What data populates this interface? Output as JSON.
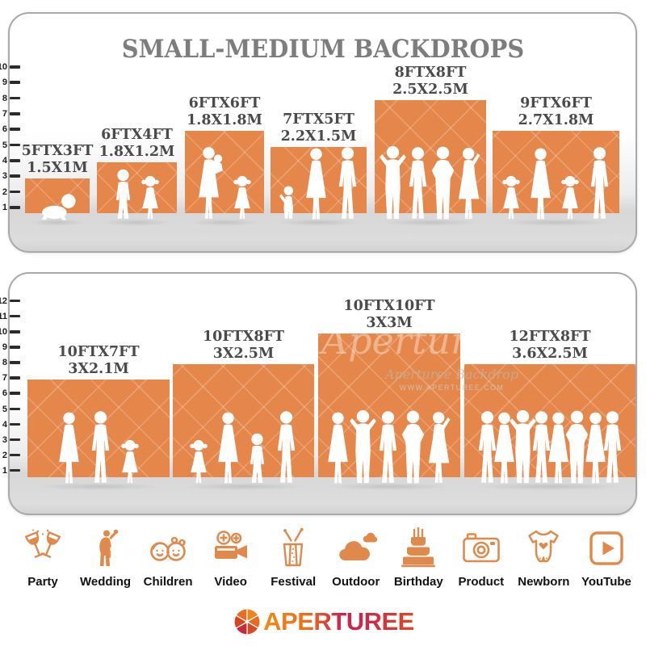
{
  "panel1": {
    "title": "SMALL-MEDIUM BACKDROPS",
    "ruler": [
      "10",
      "9",
      "8",
      "7",
      "6",
      "5",
      "4",
      "3",
      "2",
      "1"
    ],
    "backdrops": [
      {
        "size_ft": "5FTX3FT",
        "size_m": "1.5X1M",
        "figures": [
          "baby"
        ]
      },
      {
        "size_ft": "6FTX4FT",
        "size_m": "1.8X1.2M",
        "figures": [
          "boy",
          "girl"
        ]
      },
      {
        "size_ft": "6FTX6FT",
        "size_m": "1.8X1.8M",
        "figures": [
          "woman-carry",
          "girl"
        ]
      },
      {
        "size_ft": "7FTX5FT",
        "size_m": "2.2X1.5M",
        "figures": [
          "child",
          "woman",
          "man"
        ]
      },
      {
        "size_ft": "8FTX8FT",
        "size_m": "2.5X2.5M",
        "figures": [
          "man-armsup",
          "man",
          "man-akimbo",
          "woman-armsup"
        ]
      },
      {
        "size_ft": "9FTX6FT",
        "size_m": "2.7X1.8M",
        "figures": [
          "girl",
          "woman",
          "girl",
          "man"
        ]
      }
    ]
  },
  "panel2": {
    "ruler": [
      "12",
      "11",
      "10",
      "9",
      "8",
      "7",
      "6",
      "5",
      "4",
      "3",
      "2",
      "1"
    ],
    "watermark": {
      "script": "Aperturee Backdrop",
      "url": "WWW.APERTUREE.COM",
      "script_fragment": "Aperturee"
    },
    "backdrops": [
      {
        "size_ft": "10FTX7FT",
        "size_m": "3X2.1M",
        "figures": [
          "woman",
          "man",
          "girl"
        ]
      },
      {
        "size_ft": "10FTX8FT",
        "size_m": "3X2.5M",
        "figures": [
          "girl",
          "woman",
          "boy",
          "man"
        ]
      },
      {
        "size_ft": "10FTX10FT",
        "size_m": "3X3M",
        "figures": [
          "woman",
          "man-armsup",
          "man",
          "man-akimbo",
          "woman-armsup"
        ]
      },
      {
        "size_ft": "12FTX8FT",
        "size_m": "3.6X2.5M",
        "figures": [
          "man",
          "woman",
          "man-armsup",
          "man",
          "woman",
          "man-akimbo",
          "woman",
          "man"
        ]
      }
    ]
  },
  "categories": [
    {
      "label": "Party",
      "icon": "party-icon"
    },
    {
      "label": "Wedding",
      "icon": "wedding-icon"
    },
    {
      "label": "Children",
      "icon": "children-icon"
    },
    {
      "label": "Video",
      "icon": "video-icon"
    },
    {
      "label": "Festival",
      "icon": "festival-icon"
    },
    {
      "label": "Outdoor",
      "icon": "outdoor-icon"
    },
    {
      "label": "Birthday",
      "icon": "birthday-icon"
    },
    {
      "label": "Product",
      "icon": "product-icon"
    },
    {
      "label": "Newborn",
      "icon": "newborn-icon"
    },
    {
      "label": "YouTube",
      "icon": "youtube-icon"
    }
  ],
  "logo": {
    "text": "APERTUREE"
  },
  "colors": {
    "backdrop_orange": "#E5864A",
    "icon_orange": "#DF8A4C",
    "title_gray": "#7D7D7D",
    "label_gray": "#4A4A4A",
    "logo_orange": "#F28A15",
    "logo_crimson": "#C62A4E"
  }
}
